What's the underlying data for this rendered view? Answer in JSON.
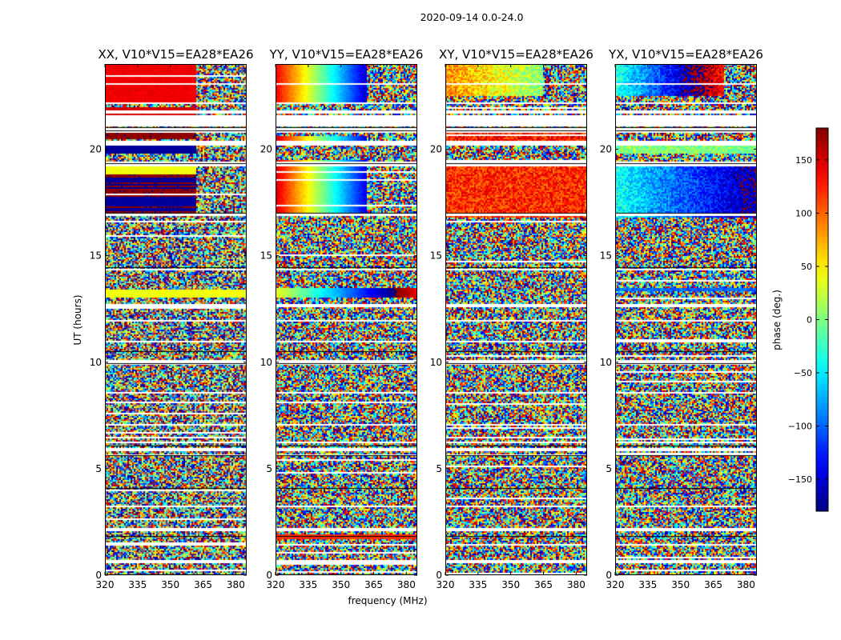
{
  "figure": {
    "title": "2020-09-14 0.0-24.0"
  },
  "chart_data": {
    "type": "heatmap",
    "title": "2020-09-14 0.0-24.0",
    "xlabel": "frequency (MHz)",
    "ylabel": "UT (hours)",
    "xlim": [
      320,
      385
    ],
    "ylim": [
      0,
      24
    ],
    "xticks": [
      320,
      335,
      350,
      365,
      380
    ],
    "xtick_labels": [
      "320",
      "335",
      "350",
      "365",
      "380"
    ],
    "yticks": [
      0,
      5,
      10,
      15,
      20
    ],
    "ytick_labels": [
      "0",
      "5",
      "10",
      "15",
      "20"
    ],
    "panels": [
      {
        "name": "XX",
        "title": "XX, V10*V15=EA28*EA26"
      },
      {
        "name": "YY",
        "title": "YY, V10*V15=EA28*EA26"
      },
      {
        "name": "XY",
        "title": "XY, V10*V15=EA28*EA26"
      },
      {
        "name": "YX",
        "title": "YX, V10*V15=EA28*EA26"
      }
    ],
    "colorbar": {
      "label": "phase (deg.)",
      "range": [
        -180,
        180
      ],
      "colormap": "jet",
      "ticks": [
        -150,
        -100,
        -50,
        0,
        50,
        100,
        150
      ],
      "tick_labels": [
        "−150",
        "−100",
        "−50",
        "0",
        "50",
        "100",
        "150"
      ]
    }
  }
}
